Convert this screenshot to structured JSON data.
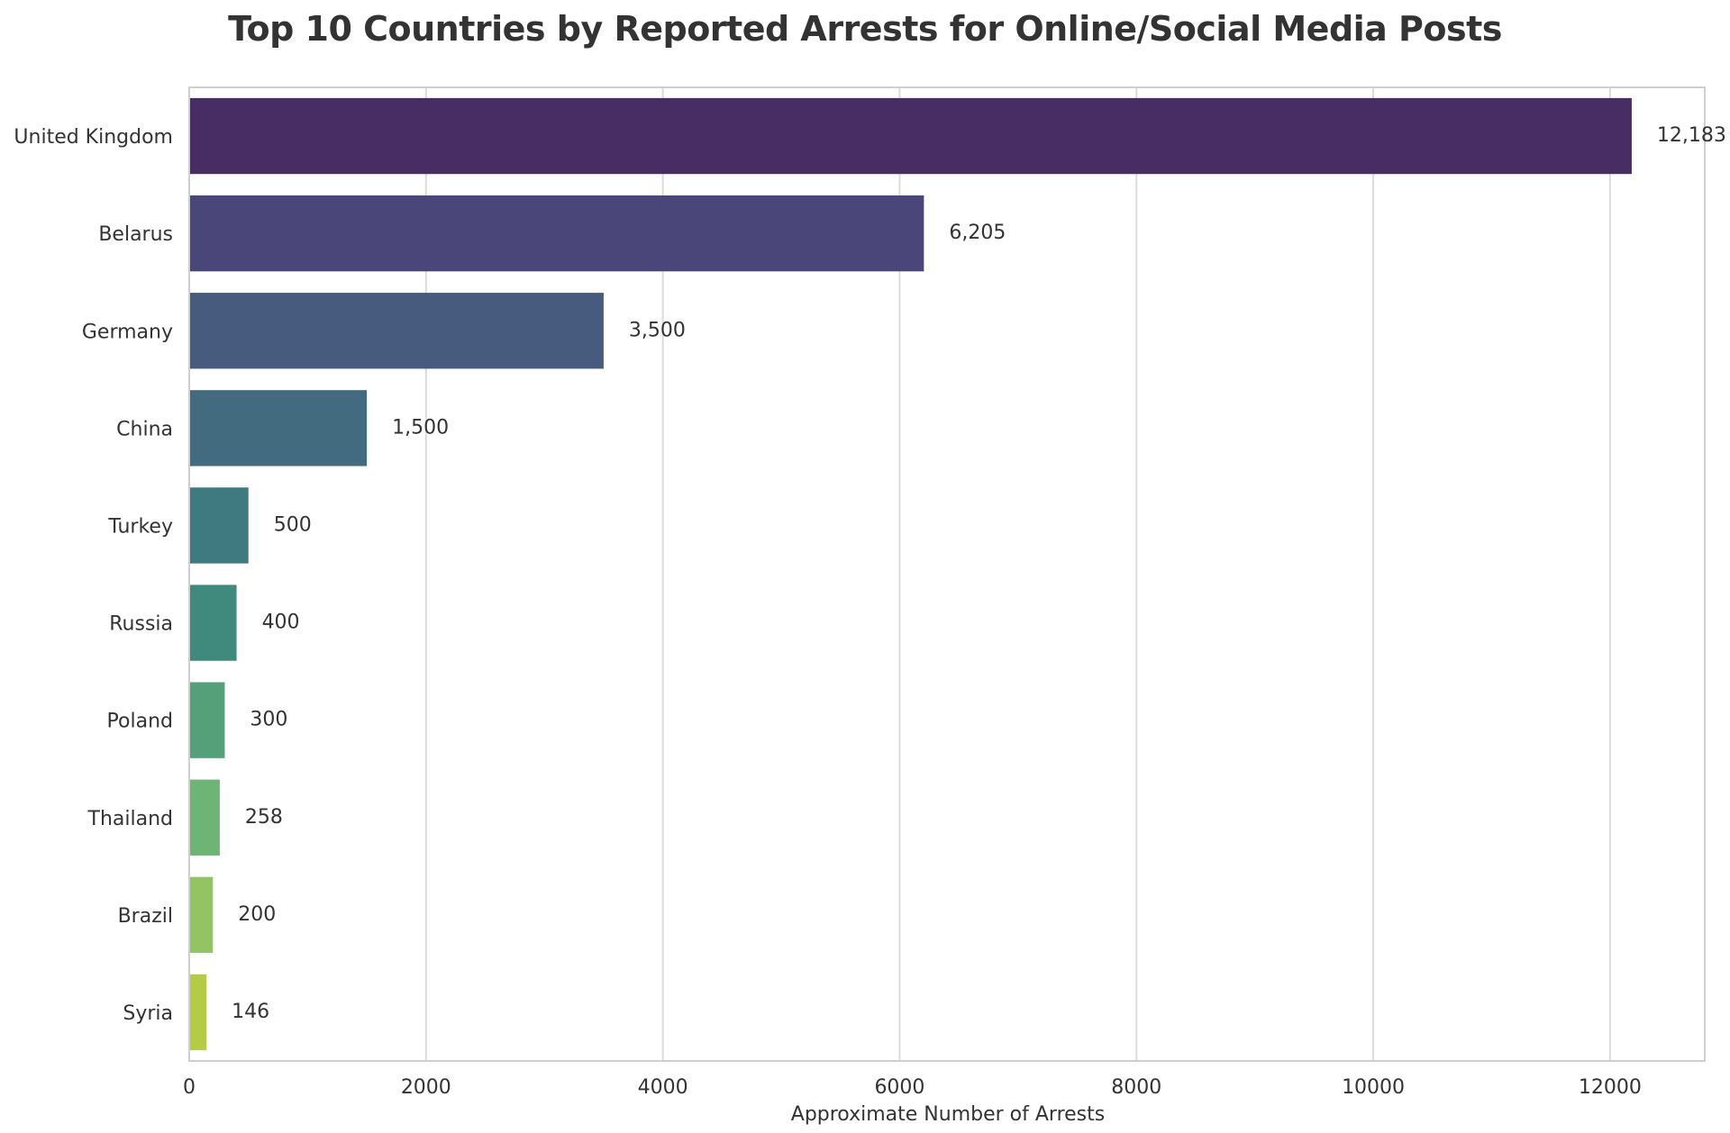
{
  "chart_data": {
    "type": "bar",
    "orientation": "horizontal",
    "title": "Top 10 Countries by Reported Arrests for Online/Social Media Posts",
    "xlabel": "Approximate Number of Arrests",
    "ylabel": "",
    "categories": [
      "United Kingdom",
      "Belarus",
      "Germany",
      "China",
      "Turkey",
      "Russia",
      "Poland",
      "Thailand",
      "Brazil",
      "Syria"
    ],
    "values": [
      12183,
      6205,
      3500,
      1500,
      500,
      400,
      300,
      258,
      200,
      146
    ],
    "data_labels": [
      "12,183",
      "6,205",
      "3,500",
      "1,500",
      "500",
      "400",
      "300",
      "258",
      "200",
      "146"
    ],
    "xlim": [
      0,
      12800
    ],
    "xticks": [
      0,
      2000,
      4000,
      6000,
      8000,
      10000,
      12000
    ],
    "xtick_labels": [
      "0",
      "2000",
      "4000",
      "6000",
      "8000",
      "10000",
      "12000"
    ],
    "grid": "vertical",
    "legend": "none",
    "colors": [
      "#472d63",
      "#4a4679",
      "#475b7e",
      "#426b80",
      "#3e7a80",
      "#3f8a7c",
      "#53a079",
      "#6eb575",
      "#93c462",
      "#b4cc45"
    ]
  }
}
